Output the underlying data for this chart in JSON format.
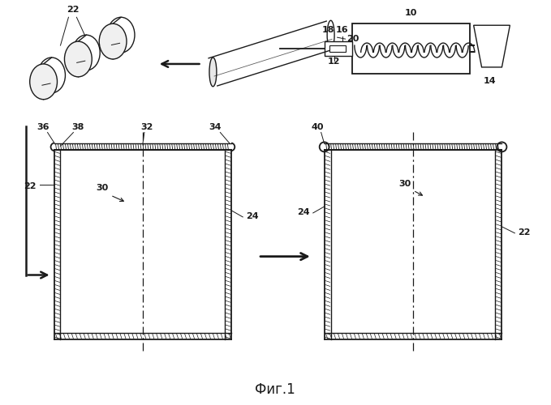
{
  "title": "Фиг.1",
  "bg_color": "#ffffff",
  "line_color": "#1a1a1a",
  "fig_width": 6.79,
  "fig_height": 5.0,
  "dpi": 100
}
